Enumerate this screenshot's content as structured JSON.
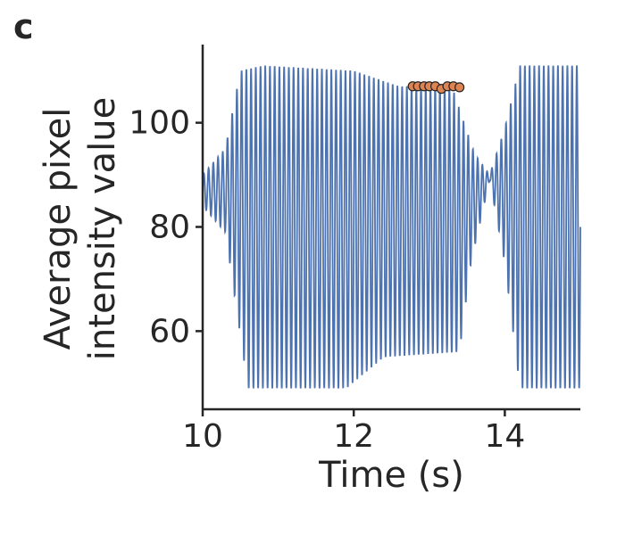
{
  "panel_label": "c",
  "chart_data": {
    "type": "line",
    "xlabel": "Time (s)",
    "ylabel_lines": [
      "Average pixel",
      "intensity value"
    ],
    "xlim": [
      10,
      15
    ],
    "ylim": [
      45,
      115
    ],
    "xticks": [
      {
        "value": 10,
        "label": "10"
      },
      {
        "value": 12,
        "label": "12"
      },
      {
        "value": 14,
        "label": "14"
      }
    ],
    "yticks": [
      {
        "value": 60,
        "label": "60"
      },
      {
        "value": 80,
        "label": "80"
      },
      {
        "value": 100,
        "label": "100"
      }
    ],
    "series": [
      {
        "color": "#4c72b0",
        "oscillation_period_s": 0.0625,
        "envelope_max": [
          [
            10.0,
            90
          ],
          [
            10.3,
            95
          ],
          [
            10.5,
            110
          ],
          [
            10.8,
            111
          ],
          [
            12.0,
            110
          ],
          [
            12.6,
            107
          ],
          [
            13.3,
            107
          ],
          [
            13.6,
            94
          ],
          [
            13.8,
            90
          ],
          [
            14.0,
            99
          ],
          [
            14.2,
            111
          ],
          [
            15.0,
            111
          ]
        ],
        "envelope_min": [
          [
            10.0,
            84
          ],
          [
            10.3,
            79
          ],
          [
            10.6,
            49
          ],
          [
            11.9,
            49
          ],
          [
            12.4,
            55
          ],
          [
            13.4,
            56
          ],
          [
            13.55,
            73
          ],
          [
            13.8,
            89
          ],
          [
            14.0,
            73
          ],
          [
            14.2,
            49
          ],
          [
            15.0,
            49
          ]
        ]
      }
    ],
    "markers": {
      "color": "#dd8452",
      "edge_color": "#262626",
      "x": [
        12.78,
        12.85,
        12.93,
        13.0,
        13.08,
        13.16,
        13.24,
        13.32,
        13.4
      ],
      "y": [
        107,
        107,
        107,
        107,
        107,
        106.5,
        107,
        107,
        106.8
      ]
    }
  }
}
